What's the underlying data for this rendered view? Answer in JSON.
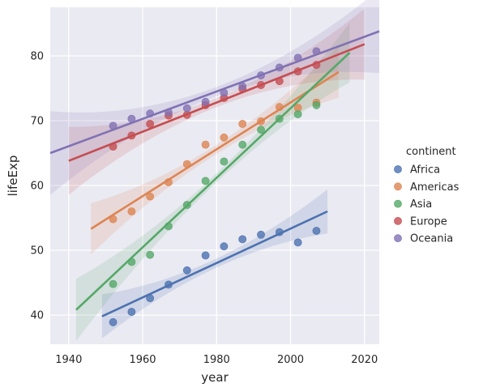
{
  "chart_data": {
    "type": "scatter",
    "title": "",
    "xlabel": "year",
    "ylabel": "lifeExp",
    "xlim": [
      1935,
      2024
    ],
    "ylim": [
      35.5,
      87.5
    ],
    "xticks": [
      1940,
      1960,
      1980,
      2000,
      2020
    ],
    "yticks": [
      40,
      50,
      60,
      70,
      80
    ],
    "grid": true,
    "legend_title": "continent",
    "legend_position": "right",
    "fit": "linear regression with confidence band",
    "series": [
      {
        "name": "Africa",
        "color": "#4c72b0",
        "x": [
          1952,
          1957,
          1962,
          1967,
          1972,
          1977,
          1982,
          1987,
          1992,
          1997,
          2002,
          2007
        ],
        "y": [
          38.9,
          40.5,
          42.6,
          44.7,
          46.9,
          49.2,
          50.6,
          51.7,
          52.4,
          52.8,
          51.2,
          53.0
        ],
        "fit": {
          "x0": 1949,
          "y0": 39.8,
          "x1": 2010,
          "y1": 56.0
        }
      },
      {
        "name": "Americas",
        "color": "#dd8452",
        "x": [
          1952,
          1957,
          1962,
          1967,
          1972,
          1977,
          1982,
          1987,
          1992,
          1997,
          2002,
          2007
        ],
        "y": [
          54.8,
          56.0,
          58.3,
          60.5,
          63.3,
          66.3,
          67.4,
          69.5,
          69.9,
          72.1,
          72.0,
          72.8
        ],
        "fit": {
          "x0": 1946,
          "y0": 53.3,
          "x1": 2013,
          "y1": 77.5
        }
      },
      {
        "name": "Asia",
        "color": "#55a868",
        "x": [
          1952,
          1957,
          1962,
          1967,
          1972,
          1977,
          1982,
          1987,
          1992,
          1997,
          2002,
          2007
        ],
        "y": [
          44.8,
          48.2,
          49.3,
          53.7,
          57.0,
          60.7,
          63.7,
          66.3,
          68.6,
          70.3,
          71.0,
          72.4
        ],
        "fit": {
          "x0": 1942,
          "y0": 40.8,
          "x1": 2016,
          "y1": 80.5
        }
      },
      {
        "name": "Europe",
        "color": "#c44e52",
        "x": [
          1952,
          1957,
          1962,
          1967,
          1972,
          1977,
          1982,
          1987,
          1992,
          1997,
          2002,
          2007
        ],
        "y": [
          66.0,
          67.7,
          69.5,
          70.8,
          70.9,
          72.4,
          73.5,
          74.9,
          75.5,
          76.1,
          77.6,
          78.6
        ],
        "fit": {
          "x0": 1940,
          "y0": 63.8,
          "x1": 2020,
          "y1": 81.8
        }
      },
      {
        "name": "Oceania",
        "color": "#8172b3",
        "x": [
          1952,
          1957,
          1962,
          1967,
          1972,
          1977,
          1982,
          1987,
          1992,
          1997,
          2002,
          2007
        ],
        "y": [
          69.2,
          70.3,
          71.1,
          71.3,
          71.9,
          72.9,
          74.3,
          75.3,
          77.0,
          78.2,
          79.7,
          80.7
        ],
        "fit": {
          "x0": 1935,
          "y0": 65.0,
          "x1": 2024,
          "y1": 83.8
        }
      }
    ]
  }
}
